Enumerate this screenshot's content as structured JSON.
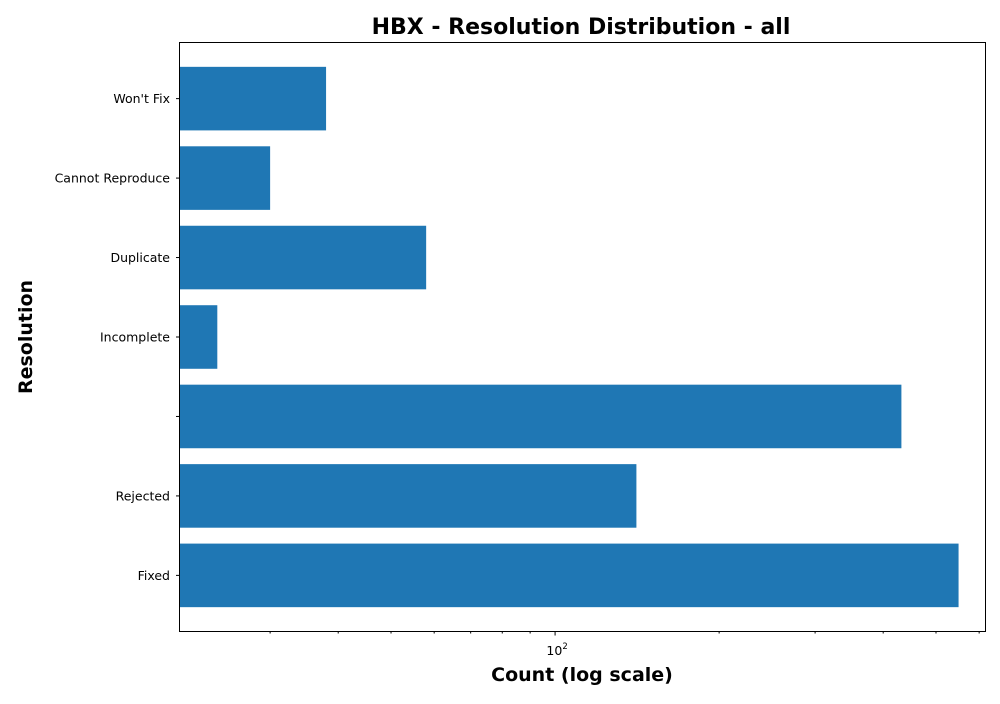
{
  "chart_data": {
    "type": "bar",
    "orientation": "horizontal",
    "title": "HBX - Resolution Distribution - all",
    "xlabel": "Count (log scale)",
    "ylabel": "Resolution",
    "x_scale": "log",
    "xlim": [
      20.5,
      615
    ],
    "x_tick_labels": [
      {
        "base": "10",
        "exponent": "2",
        "value": 100
      }
    ],
    "categories": [
      "Fixed",
      "Rejected",
      "",
      "Incomplete",
      "Duplicate",
      "Cannot Reproduce",
      "Won't Fix"
    ],
    "values": [
      550,
      141,
      432,
      24,
      58,
      30,
      38
    ],
    "colors": {
      "bar": "#1f77b4",
      "axes": "#000000",
      "background": "#ffffff"
    },
    "grid": false,
    "legend": "none"
  }
}
